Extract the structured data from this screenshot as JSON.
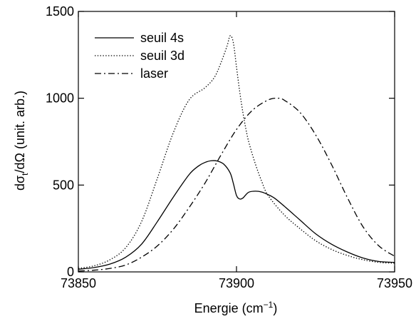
{
  "chart_data": {
    "type": "line",
    "title": "",
    "xlabel": {
      "base": "Energie (cm",
      "sup": "−1",
      "close": ")"
    },
    "ylabel": {
      "pre": "dσ",
      "sub": "t",
      "post": "/dΩ (unit. arb.)"
    },
    "xlim": [
      73850,
      73950
    ],
    "ylim": [
      0,
      1500
    ],
    "xticks": [
      73850,
      73900,
      73950
    ],
    "yticks": [
      0,
      500,
      1000,
      1500
    ],
    "xtick_labels": [
      "73850",
      "73900",
      "73950"
    ],
    "ytick_labels": [
      "0",
      "500",
      "1000",
      "1500"
    ],
    "grid": false,
    "legend_position": "top-left",
    "series": [
      {
        "name": "seuil 4s",
        "style": "solid",
        "x": [
          73850,
          73855,
          73860,
          73865,
          73870,
          73875,
          73880,
          73885,
          73888,
          73890,
          73892,
          73894,
          73896,
          73898,
          73899,
          73900,
          73901,
          73902,
          73903,
          73904,
          73906,
          73908,
          73910,
          73912,
          73915,
          73920,
          73925,
          73930,
          73935,
          73940,
          73945,
          73950
        ],
        "y": [
          15,
          25,
          45,
          85,
          160,
          290,
          430,
          560,
          610,
          630,
          640,
          638,
          620,
          570,
          510,
          440,
          420,
          425,
          445,
          460,
          465,
          460,
          445,
          425,
          380,
          300,
          220,
          160,
          115,
          80,
          60,
          55
        ]
      },
      {
        "name": "seuil 3d",
        "style": "dotted",
        "x": [
          73850,
          73855,
          73860,
          73865,
          73870,
          73875,
          73880,
          73885,
          73890,
          73893,
          73895,
          73897,
          73898,
          73899,
          73900,
          73901,
          73902,
          73903,
          73904,
          73906,
          73908,
          73910,
          73915,
          73920,
          73925,
          73930,
          73935,
          73940,
          73945,
          73950
        ],
        "y": [
          20,
          35,
          70,
          140,
          290,
          540,
          800,
          990,
          1060,
          1120,
          1200,
          1300,
          1360,
          1320,
          1180,
          1040,
          920,
          820,
          740,
          620,
          520,
          440,
          330,
          250,
          180,
          130,
          95,
          70,
          55,
          50
        ]
      },
      {
        "name": "laser",
        "style": "dashdot",
        "x": [
          73850,
          73855,
          73860,
          73865,
          73870,
          73875,
          73880,
          73885,
          73890,
          73895,
          73900,
          73905,
          73910,
          73913,
          73915,
          73920,
          73925,
          73930,
          73935,
          73940,
          73945,
          73950
        ],
        "y": [
          5,
          10,
          20,
          40,
          85,
          150,
          245,
          370,
          510,
          670,
          820,
          930,
          990,
          1000,
          990,
          920,
          790,
          620,
          430,
          260,
          150,
          90
        ]
      }
    ]
  }
}
